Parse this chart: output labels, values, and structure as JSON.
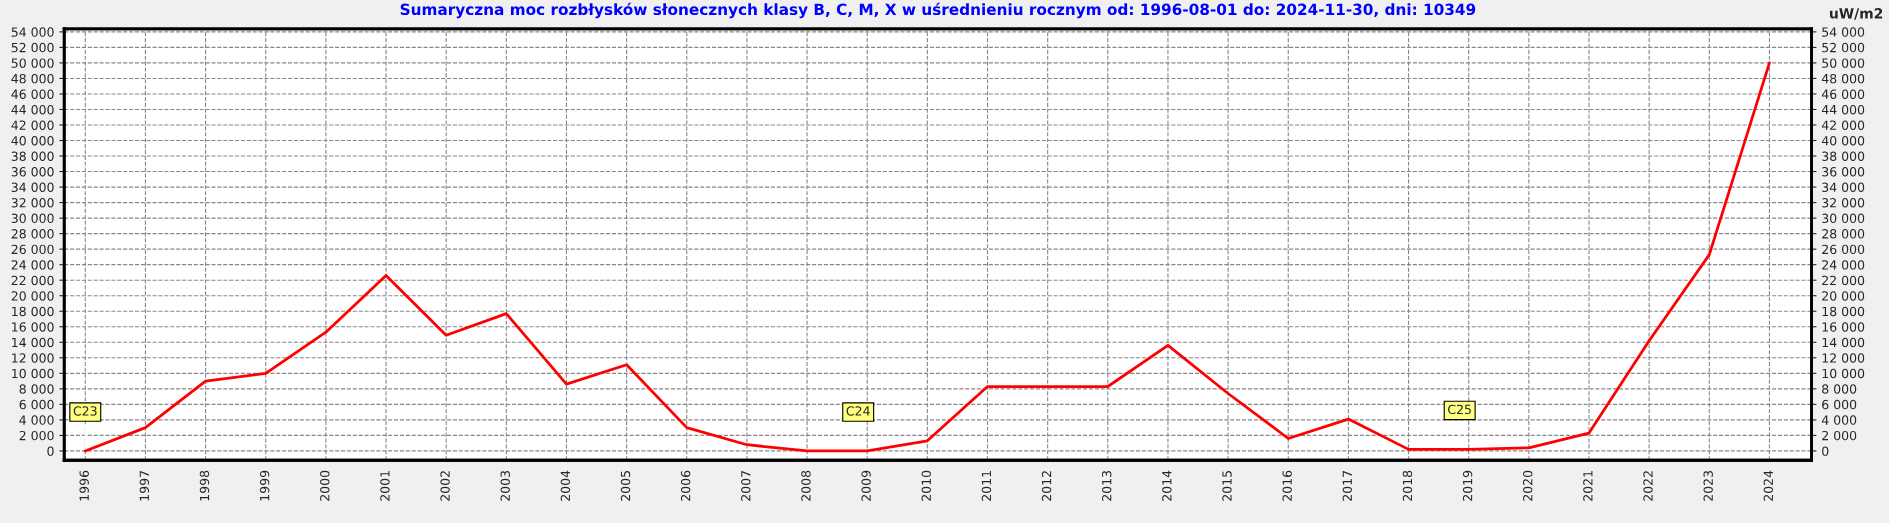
{
  "chart_data": {
    "type": "line",
    "title": "Sumaryczna moc rozbłysków słonecznych klasy B, C, M, X w uśrednieniu rocznym od: 1996-08-01 do: 2024-11-30, dni: 10349",
    "y2label": "uW/m2",
    "x": [
      1996,
      1997,
      1998,
      1999,
      2000,
      2001,
      2002,
      2003,
      2004,
      2005,
      2006,
      2007,
      2008,
      2009,
      2010,
      2011,
      2012,
      2013,
      2014,
      2015,
      2016,
      2017,
      2018,
      2019,
      2020,
      2021,
      2022,
      2023,
      2024
    ],
    "series": [
      {
        "color": "#ff0000",
        "values": [
          0,
          3000,
          9000,
          10000,
          15300,
          22600,
          14900,
          17700,
          8600,
          11100,
          3000,
          800,
          0,
          0,
          1300,
          8300,
          8300,
          8300,
          13600,
          7400,
          1600,
          4100,
          200,
          200,
          400,
          2300,
          14200,
          25300,
          50000
        ]
      }
    ],
    "xlim": [
      1995.65,
      2024.7
    ],
    "xticks": [
      1996,
      1997,
      1998,
      1999,
      2000,
      2001,
      2002,
      2003,
      2004,
      2005,
      2006,
      2007,
      2008,
      2009,
      2010,
      2011,
      2012,
      2013,
      2014,
      2015,
      2016,
      2017,
      2018,
      2019,
      2020,
      2021,
      2022,
      2023,
      2024
    ],
    "ylim": [
      -1200,
      54400
    ],
    "yticks": [
      {
        "value": 0,
        "label": "0"
      },
      {
        "value": 2000,
        "label": "2 000"
      },
      {
        "value": 4000,
        "label": "4 000"
      },
      {
        "value": 6000,
        "label": "6 000"
      },
      {
        "value": 8000,
        "label": "8 000"
      },
      {
        "value": 10000,
        "label": "10 000"
      },
      {
        "value": 12000,
        "label": "12 000"
      },
      {
        "value": 14000,
        "label": "14 000"
      },
      {
        "value": 16000,
        "label": "16 000"
      },
      {
        "value": 18000,
        "label": "18 000"
      },
      {
        "value": 20000,
        "label": "20 000"
      },
      {
        "value": 22000,
        "label": "22 000"
      },
      {
        "value": 24000,
        "label": "24 000"
      },
      {
        "value": 26000,
        "label": "26 000"
      },
      {
        "value": 28000,
        "label": "28 000"
      },
      {
        "value": 30000,
        "label": "30 000"
      },
      {
        "value": 32000,
        "label": "32 000"
      },
      {
        "value": 34000,
        "label": "34 000"
      },
      {
        "value": 36000,
        "label": "36 000"
      },
      {
        "value": 38000,
        "label": "38 000"
      },
      {
        "value": 40000,
        "label": "40 000"
      },
      {
        "value": 42000,
        "label": "42 000"
      },
      {
        "value": 44000,
        "label": "44 000"
      },
      {
        "value": 46000,
        "label": "46 000"
      },
      {
        "value": 48000,
        "label": "48 000"
      },
      {
        "value": 50000,
        "label": "50 000"
      },
      {
        "value": 52000,
        "label": "52 000"
      },
      {
        "value": 54000,
        "label": "54 000"
      }
    ],
    "y2lim": [
      -1200,
      54400
    ],
    "y2ticks": [
      {
        "value": 0,
        "label": "0"
      },
      {
        "value": 2000,
        "label": "2 000"
      },
      {
        "value": 4000,
        "label": "4 000"
      },
      {
        "value": 6000,
        "label": "6 000"
      },
      {
        "value": 8000,
        "label": "8 000"
      },
      {
        "value": 10000,
        "label": "10 000"
      },
      {
        "value": 12000,
        "label": "12 000"
      },
      {
        "value": 14000,
        "label": "14 000"
      },
      {
        "value": 16000,
        "label": "16 000"
      },
      {
        "value": 18000,
        "label": "18 000"
      },
      {
        "value": 20000,
        "label": "20 000"
      },
      {
        "value": 22000,
        "label": "22 000"
      },
      {
        "value": 24000,
        "label": "24 000"
      },
      {
        "value": 26000,
        "label": "26 000"
      },
      {
        "value": 28000,
        "label": "28 000"
      },
      {
        "value": 30000,
        "label": "30 000"
      },
      {
        "value": 32000,
        "label": "32 000"
      },
      {
        "value": 34000,
        "label": "34 000"
      },
      {
        "value": 36000,
        "label": "36 000"
      },
      {
        "value": 38000,
        "label": "38 000"
      },
      {
        "value": 40000,
        "label": "40 000"
      },
      {
        "value": 42000,
        "label": "42 000"
      },
      {
        "value": 44000,
        "label": "44 000"
      },
      {
        "value": 46000,
        "label": "46 000"
      },
      {
        "value": 48000,
        "label": "48 000"
      },
      {
        "value": 50000,
        "label": "50 000"
      },
      {
        "value": 52000,
        "label": "52 000"
      },
      {
        "value": 54000,
        "label": "54 000"
      }
    ],
    "annotations": [
      {
        "text": "C23",
        "x": 1996,
        "y": 0
      },
      {
        "text": "C24",
        "x": 2008.85,
        "y": 0
      },
      {
        "text": "C25",
        "x": 2018.85,
        "y": 200
      }
    ],
    "grid": true,
    "legend": false,
    "marker": "none",
    "line_style": "solid"
  }
}
